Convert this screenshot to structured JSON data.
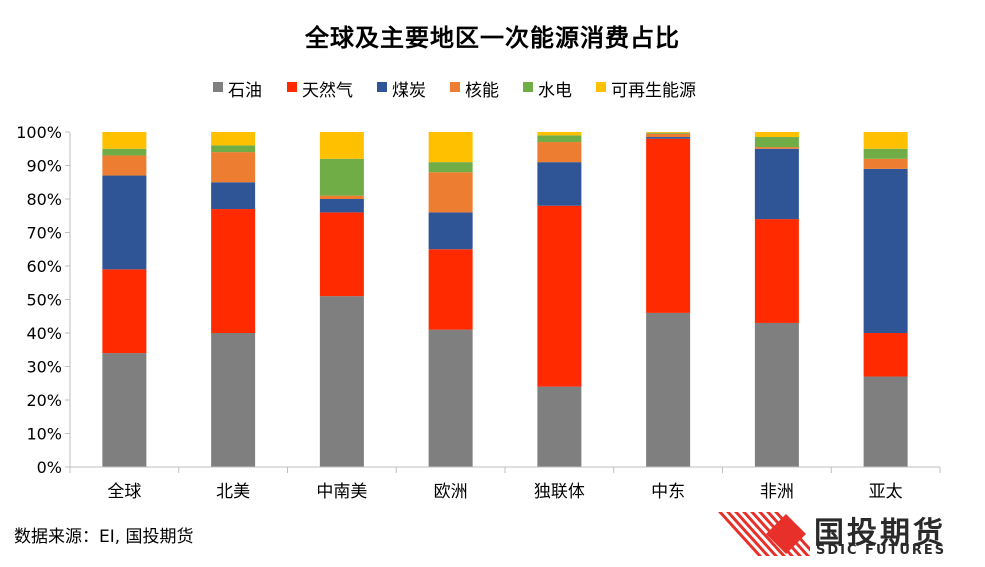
{
  "chart_data": {
    "type": "bar",
    "stacked": true,
    "title": "全球及主要地区一次能源消费占比",
    "categories": [
      "全球",
      "北美",
      "中南美",
      "欧洲",
      "独联体",
      "中东",
      "非洲",
      "亚太"
    ],
    "series": [
      {
        "name": "石油",
        "color": "#7f7f7f",
        "values": [
          34,
          40,
          51,
          41,
          24,
          46,
          43,
          27
        ]
      },
      {
        "name": "天然气",
        "color": "#ff2a00",
        "values": [
          25,
          37,
          25,
          24,
          54,
          52,
          31,
          13
        ]
      },
      {
        "name": "煤炭",
        "color": "#2f5597",
        "values": [
          28,
          8,
          4,
          11,
          13,
          0.5,
          21,
          49
        ]
      },
      {
        "name": "核能",
        "color": "#ed7d31",
        "values": [
          6,
          9,
          1,
          12,
          6,
          1,
          0.5,
          3
        ]
      },
      {
        "name": "水电",
        "color": "#70ad47",
        "values": [
          2,
          2,
          11,
          3,
          2,
          0.3,
          3,
          3
        ]
      },
      {
        "name": "可再生能源",
        "color": "#ffc000",
        "values": [
          5,
          4,
          8,
          9,
          1,
          0.2,
          1.5,
          5
        ]
      }
    ],
    "ylim": [
      0,
      100
    ],
    "yticks": [
      "0%",
      "10%",
      "20%",
      "30%",
      "40%",
      "50%",
      "60%",
      "70%",
      "80%",
      "90%",
      "100%"
    ],
    "legend_position": "top",
    "grid": false
  },
  "source": "数据来源：EI, 国投期货",
  "logo": {
    "name_cn": "国投期货",
    "name_en": "SDIC FUTURES",
    "color": "#e8302a"
  }
}
